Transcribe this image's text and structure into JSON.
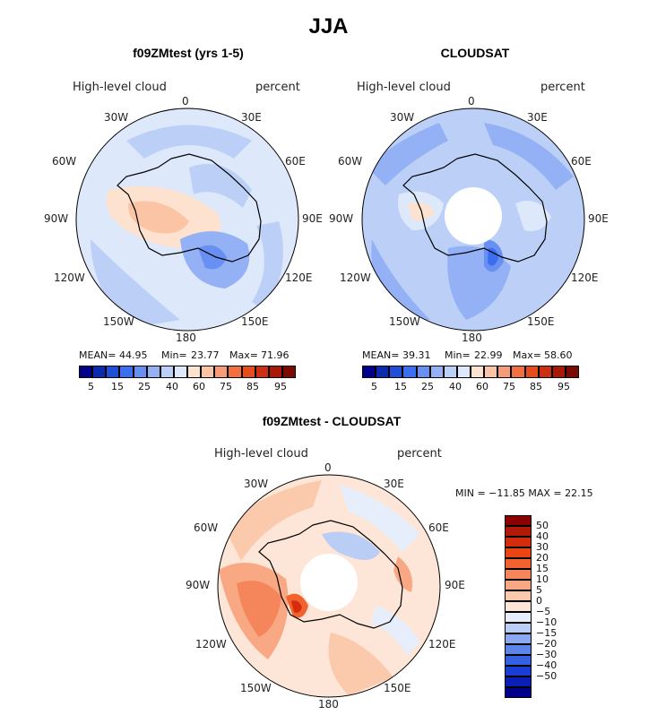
{
  "title": "JJA",
  "chart_data": [
    {
      "type": "polar-contour",
      "title": "f09ZMtest (yrs 1-5)",
      "field": "High-level cloud",
      "units": "percent",
      "lon_labels": [
        "0",
        "30E",
        "60E",
        "90E",
        "120E",
        "150E",
        "180",
        "150W",
        "120W",
        "90W",
        "60W",
        "30W"
      ],
      "mean_label": "MEAN=",
      "mean": "44.95",
      "min_label": "Min=",
      "min": "23.77",
      "max_label": "Max=",
      "max": "71.96",
      "colorbar_labels": [
        "5",
        "15",
        "25",
        "40",
        "60",
        "75",
        "85",
        "95"
      ],
      "colors": [
        "#00008b",
        "#0a2ab0",
        "#1e4fd6",
        "#3c6ef0",
        "#6890f2",
        "#93b1f4",
        "#bcd0f7",
        "#dde8fa",
        "#fde3cf",
        "#fbc4a4",
        "#f79c79",
        "#f2703f",
        "#e84c1c",
        "#cc3010",
        "#a81a06",
        "#7a0a02"
      ]
    },
    {
      "type": "polar-contour",
      "title": "CLOUDSAT",
      "field": "High-level cloud",
      "units": "percent",
      "lon_labels": [
        "0",
        "30E",
        "60E",
        "90E",
        "120E",
        "150E",
        "180",
        "150W",
        "120W",
        "90W",
        "60W",
        "30W"
      ],
      "mean_label": "MEAN=",
      "mean": "39.31",
      "min_label": "Min=",
      "min": "22.99",
      "max_label": "Max=",
      "max": "58.60",
      "colorbar_labels": [
        "5",
        "15",
        "25",
        "40",
        "60",
        "75",
        "85",
        "95"
      ]
    },
    {
      "type": "polar-contour",
      "title": "f09ZMtest - CLOUDSAT",
      "field": "High-level cloud",
      "units": "percent",
      "lon_labels": [
        "0",
        "30E",
        "60E",
        "90E",
        "120E",
        "150E",
        "180",
        "150W",
        "120W",
        "90W",
        "60W",
        "30W"
      ],
      "minmax_text": "MIN = −11.85 MAX =   22.15",
      "colorbar_labels": [
        "50",
        "40",
        "30",
        "20",
        "15",
        "10",
        "5",
        "0",
        "−5",
        "−10",
        "−15",
        "−20",
        "−30",
        "−40",
        "−50"
      ],
      "diff_colors": [
        "#8b0000",
        "#b01a06",
        "#d42c0c",
        "#ea4414",
        "#f2622e",
        "#f5855a",
        "#f8a983",
        "#fbc9ac",
        "#fde6d8",
        "#e6eefb",
        "#b9cdf5",
        "#8aa9f0",
        "#5c85ea",
        "#3460e2",
        "#1a3ed4",
        "#0a1fb5",
        "#00008b"
      ]
    }
  ]
}
